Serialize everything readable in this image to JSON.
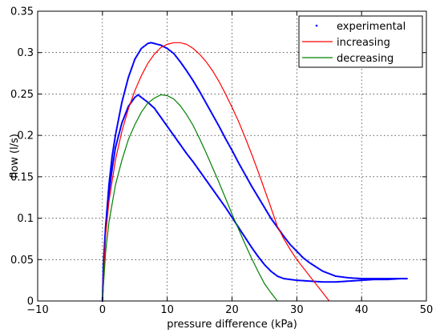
{
  "chart_data": {
    "type": "line",
    "title": "",
    "xlabel": "pressure difference (kPa)",
    "ylabel": "flow (l/s)",
    "xlim": [
      -10,
      50
    ],
    "ylim": [
      0,
      0.35
    ],
    "xticks": [
      -10,
      0,
      10,
      20,
      30,
      40,
      50
    ],
    "xtick_labels": [
      "−10",
      "0",
      "10",
      "20",
      "30",
      "40",
      "50"
    ],
    "yticks": [
      0,
      0.05,
      0.1,
      0.15,
      0.2,
      0.25,
      0.3,
      0.35
    ],
    "ytick_labels": [
      "0",
      "0.05",
      "0.1",
      "0.15",
      "0.2",
      "0.25",
      "0.3",
      "0.35"
    ],
    "grid": true,
    "legend_position": "top-right",
    "series": [
      {
        "name": "experimental",
        "style": "dots",
        "color": "#0000ff",
        "x": [
          0,
          0.2,
          0.5,
          1,
          1.5,
          2,
          3,
          4,
          5,
          6,
          7,
          7.5,
          8,
          9,
          10,
          11,
          12,
          13,
          14,
          15,
          16,
          17,
          18,
          19,
          20,
          21,
          22,
          23,
          24,
          25,
          26,
          27,
          28,
          29,
          30,
          31,
          32,
          33,
          34,
          35,
          36,
          38,
          40,
          42,
          44,
          46,
          47,
          46,
          44,
          42,
          40,
          38,
          36,
          34,
          32,
          30,
          29,
          28,
          27,
          26,
          25,
          24,
          23,
          22,
          21,
          20,
          19,
          18,
          17,
          16,
          15,
          14,
          13,
          12,
          11,
          10,
          9,
          8,
          7,
          6,
          5.5,
          5,
          4,
          3,
          2,
          1.5,
          1,
          0.5,
          0.2,
          0
        ],
        "y": [
          0,
          0.05,
          0.09,
          0.14,
          0.175,
          0.2,
          0.24,
          0.27,
          0.292,
          0.305,
          0.311,
          0.312,
          0.311,
          0.309,
          0.305,
          0.299,
          0.289,
          0.278,
          0.266,
          0.253,
          0.239,
          0.225,
          0.211,
          0.196,
          0.182,
          0.167,
          0.153,
          0.139,
          0.126,
          0.113,
          0.1,
          0.089,
          0.078,
          0.068,
          0.06,
          0.052,
          0.046,
          0.041,
          0.036,
          0.033,
          0.03,
          0.028,
          0.027,
          0.027,
          0.027,
          0.027,
          0.027,
          0.027,
          0.026,
          0.026,
          0.025,
          0.024,
          0.023,
          0.023,
          0.024,
          0.025,
          0.026,
          0.027,
          0.03,
          0.036,
          0.044,
          0.054,
          0.065,
          0.077,
          0.089,
          0.101,
          0.113,
          0.124,
          0.135,
          0.146,
          0.157,
          0.168,
          0.178,
          0.189,
          0.2,
          0.211,
          0.222,
          0.233,
          0.24,
          0.246,
          0.249,
          0.246,
          0.235,
          0.215,
          0.185,
          0.16,
          0.13,
          0.09,
          0.05,
          0
        ]
      },
      {
        "name": "increasing",
        "style": "line",
        "color": "#ff0000",
        "x": [
          0,
          0.5,
          1,
          2,
          3,
          4,
          5,
          6,
          7,
          8,
          9,
          10,
          11,
          12,
          13,
          14,
          15,
          16,
          17,
          18,
          19,
          20,
          21,
          22,
          23,
          24,
          25,
          26,
          27,
          28,
          29,
          30,
          31,
          32,
          33,
          34,
          35
        ],
        "y": [
          0,
          0.08,
          0.12,
          0.17,
          0.205,
          0.232,
          0.254,
          0.272,
          0.287,
          0.298,
          0.306,
          0.31,
          0.312,
          0.312,
          0.31,
          0.305,
          0.298,
          0.289,
          0.278,
          0.265,
          0.25,
          0.234,
          0.217,
          0.198,
          0.178,
          0.157,
          0.135,
          0.113,
          0.09,
          0.075,
          0.062,
          0.05,
          0.04,
          0.03,
          0.02,
          0.01,
          0
        ]
      },
      {
        "name": "decreasing",
        "style": "line",
        "color": "#008000",
        "x": [
          0,
          0.5,
          1,
          2,
          3,
          4,
          5,
          6,
          7,
          8,
          9,
          10,
          11,
          12,
          13,
          14,
          15,
          16,
          17,
          18,
          19,
          20,
          21,
          22,
          23,
          24,
          25,
          26,
          27
        ],
        "y": [
          0,
          0.06,
          0.095,
          0.14,
          0.17,
          0.195,
          0.213,
          0.228,
          0.239,
          0.245,
          0.249,
          0.248,
          0.244,
          0.236,
          0.225,
          0.212,
          0.196,
          0.179,
          0.161,
          0.143,
          0.124,
          0.105,
          0.087,
          0.069,
          0.052,
          0.036,
          0.021,
          0.01,
          0
        ]
      }
    ]
  }
}
